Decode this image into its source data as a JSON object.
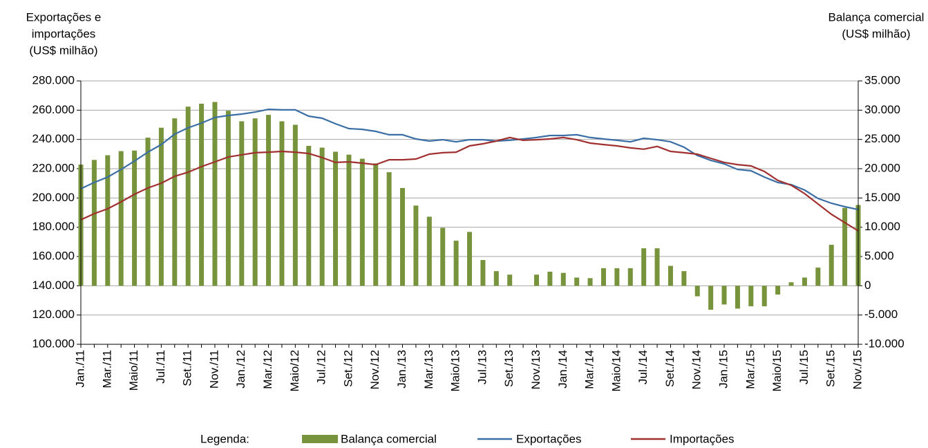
{
  "chart_data": {
    "type": "bar_line",
    "y_label": [
      "Exportações e",
      "importações",
      "(US$ milhão)"
    ],
    "y2_label": [
      "Balança comercial",
      "(US$ milhão)"
    ],
    "legend_title": "Legenda:",
    "categories": [
      "Jan./11",
      null,
      "Mar./11",
      null,
      "Maio/11",
      null,
      "Jul./11",
      null,
      "Set./11",
      null,
      "Nov./11",
      null,
      "Jan./12",
      null,
      "Mar./12",
      null,
      "Maio/12",
      null,
      "Jul./12",
      null,
      "Set./12",
      null,
      "Nov./12",
      null,
      "Jan./13",
      null,
      "Mar./13",
      null,
      "Maio/13",
      null,
      "Jul./13",
      null,
      "Set./13",
      null,
      "Nov./13",
      null,
      "Jan./14",
      null,
      "Mar./14",
      null,
      "Maio/14",
      null,
      "Jul./14",
      null,
      "Set./14",
      null,
      "Nov./14",
      null,
      "Jan./15",
      null,
      "Mar./15",
      null,
      "Maio/15",
      null,
      "Jul./15",
      null,
      "Set./15",
      null,
      "Nov./15"
    ],
    "series": [
      {
        "name": "Balança comercial",
        "type": "bar",
        "axis": "y2",
        "color": "#77933c",
        "values": [
          20700,
          21500,
          22300,
          23000,
          23100,
          25300,
          27000,
          28600,
          30600,
          31100,
          31400,
          29900,
          28100,
          28600,
          29200,
          28100,
          27500,
          23900,
          23600,
          22900,
          22400,
          21700,
          20900,
          19400,
          16700,
          13700,
          11800,
          9900,
          7700,
          9200,
          4400,
          2500,
          1900,
          0,
          1900,
          2400,
          2200,
          1400,
          1300,
          3000,
          3000,
          3000,
          6400,
          6400,
          3400,
          2500,
          -1800,
          -4100,
          -3200,
          -3900,
          -3500,
          -3500,
          -1500,
          600,
          1400,
          3100,
          7000,
          13300,
          13800
        ]
      },
      {
        "name": "Exportações",
        "type": "line",
        "color": "#3a6ea5",
        "values": [
          206300,
          210600,
          214300,
          219500,
          225200,
          231300,
          236500,
          243600,
          247900,
          251200,
          255000,
          256400,
          257300,
          258700,
          260600,
          260200,
          260200,
          255900,
          254500,
          250700,
          247400,
          246900,
          245500,
          243200,
          243200,
          240300,
          238900,
          239800,
          238400,
          239800,
          239800,
          238900,
          239400,
          240300,
          241300,
          242700,
          242700,
          243200,
          241300,
          240300,
          239400,
          238400,
          240800,
          239800,
          238400,
          234700,
          229000,
          225700,
          223300,
          219500,
          218600,
          214300,
          210600,
          209100,
          205400,
          199700,
          196400,
          194000,
          192100
        ]
      },
      {
        "name": "Importações",
        "type": "line",
        "color": "#a0302f",
        "values": [
          185100,
          189300,
          192600,
          197300,
          202500,
          206800,
          210100,
          214800,
          217600,
          221400,
          224700,
          228000,
          229500,
          230900,
          231300,
          231800,
          231300,
          230400,
          227600,
          224300,
          224700,
          223800,
          222800,
          226100,
          226100,
          226600,
          229900,
          230900,
          231300,
          235600,
          237000,
          238900,
          241300,
          239400,
          239800,
          240300,
          241300,
          239800,
          237500,
          236500,
          235600,
          234200,
          233300,
          235200,
          231800,
          230900,
          229900,
          227100,
          224300,
          222800,
          221900,
          218100,
          212000,
          208700,
          203000,
          195900,
          188800,
          183200,
          177500
        ]
      }
    ],
    "ylim": [
      100000,
      280000
    ],
    "yticks": [
      {
        "value": 100000,
        "label": "100.000"
      },
      {
        "value": 120000,
        "label": "120.000"
      },
      {
        "value": 140000,
        "label": "140.000"
      },
      {
        "value": 160000,
        "label": "160.000"
      },
      {
        "value": 180000,
        "label": "180.000"
      },
      {
        "value": 200000,
        "label": "200.000"
      },
      {
        "value": 220000,
        "label": "220.000"
      },
      {
        "value": 240000,
        "label": "240.000"
      },
      {
        "value": 260000,
        "label": "260.000"
      },
      {
        "value": 280000,
        "label": "280.000"
      }
    ],
    "y2lim": [
      -10000,
      35000
    ],
    "y2ticks": [
      {
        "value": -10000,
        "label": "-10.000"
      },
      {
        "value": -5000,
        "label": "-5.000"
      },
      0,
      {
        "value": 5000,
        "label": "5.000"
      },
      {
        "value": 10000,
        "label": "10.000"
      },
      {
        "value": 15000,
        "label": "15.000"
      },
      {
        "value": 20000,
        "label": "20.000"
      },
      {
        "value": 25000,
        "label": "25.000"
      },
      {
        "value": 30000,
        "label": "30.000"
      },
      {
        "value": 35000,
        "label": "35.000"
      }
    ],
    "grid": true
  }
}
